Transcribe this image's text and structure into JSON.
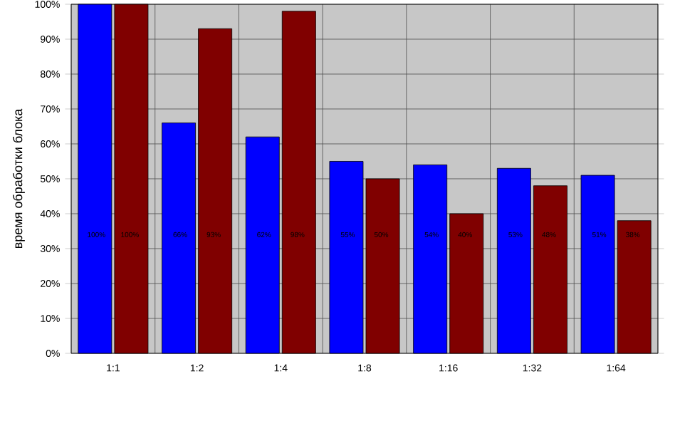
{
  "chart_data": {
    "type": "bar",
    "ylabel": "время обработки блока",
    "categories": [
      "1:1",
      "1:2",
      "1:4",
      "1:8",
      "1:16",
      "1:32",
      "1:64"
    ],
    "series": [
      {
        "color": "#0000ff",
        "values": [
          100,
          66,
          62,
          55,
          54,
          53,
          51
        ],
        "value_labels": [
          "100%",
          "66%",
          "62%",
          "55%",
          "54%",
          "53%",
          "51%"
        ]
      },
      {
        "color": "#800000",
        "values": [
          100,
          93,
          98,
          50,
          40,
          48,
          38
        ],
        "value_labels": [
          "100%",
          "93%",
          "98%",
          "50%",
          "40%",
          "48%",
          "38%"
        ]
      }
    ],
    "ylim": [
      0,
      100
    ],
    "yticks": [
      {
        "value": 0,
        "label": "0%"
      },
      {
        "value": 10,
        "label": "10%"
      },
      {
        "value": 20,
        "label": "20%"
      },
      {
        "value": 30,
        "label": "30%"
      },
      {
        "value": 40,
        "label": "40%"
      },
      {
        "value": 50,
        "label": "50%"
      },
      {
        "value": 60,
        "label": "60%"
      },
      {
        "value": 70,
        "label": "70%"
      },
      {
        "value": 80,
        "label": "80%"
      },
      {
        "value": 90,
        "label": "90%"
      },
      {
        "value": 100,
        "label": "100%"
      }
    ],
    "grid": true
  }
}
